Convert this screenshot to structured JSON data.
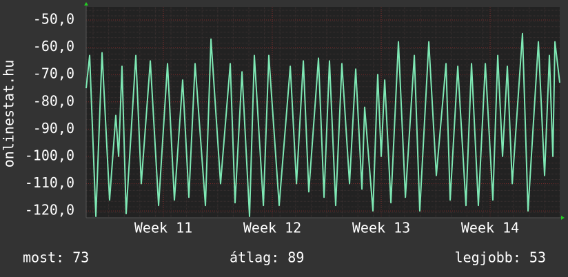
{
  "chart_data": {
    "type": "line",
    "y_label": "onlinestat.hu",
    "x": [
      10.291,
      10.323,
      10.38,
      10.437,
      10.506,
      10.563,
      10.589,
      10.62,
      10.658,
      10.747,
      10.797,
      10.88,
      10.956,
      11.038,
      11.101,
      11.177,
      11.234,
      11.291,
      11.386,
      11.437,
      11.525,
      11.614,
      11.658,
      11.722,
      11.791,
      11.835,
      11.918,
      11.968,
      12.063,
      12.165,
      12.222,
      12.285,
      12.335,
      12.424,
      12.475,
      12.525,
      12.582,
      12.639,
      12.709,
      12.766,
      12.823,
      12.848,
      12.924,
      12.968,
      13.0,
      13.032,
      13.089,
      13.158,
      13.222,
      13.304,
      13.354,
      13.437,
      13.506,
      13.595,
      13.633,
      13.703,
      13.778,
      13.829,
      13.892,
      13.956,
      14.025,
      14.07,
      14.114,
      14.158,
      14.203,
      14.297,
      14.348,
      14.443,
      14.5,
      14.544,
      14.576,
      14.595,
      14.639
    ],
    "series": [
      {
        "color": "#7ee8b4",
        "values": [
          -75,
          -63,
          -122,
          -62,
          -116,
          -85,
          -100,
          -67,
          -121,
          -63,
          -110,
          -65,
          -118,
          -66,
          -116,
          -72,
          -115,
          -66,
          -118,
          -57,
          -110,
          -66,
          -117,
          -69,
          -122,
          -63,
          -118,
          -63,
          -118,
          -67,
          -110,
          -65,
          -113,
          -64,
          -115,
          -65,
          -118,
          -66,
          -110,
          -68,
          -112,
          -82,
          -120,
          -70,
          -100,
          -72,
          -117,
          -58,
          -115,
          -63,
          -120,
          -58,
          -107,
          -66,
          -116,
          -67,
          -118,
          -66,
          -118,
          -66,
          -116,
          -63,
          -100,
          -67,
          -110,
          -55,
          -120,
          -58,
          -107,
          -63,
          -100,
          -58,
          -73
        ]
      }
    ],
    "xlim": [
      10.291,
      14.639
    ],
    "xticks": [
      {
        "value": 11,
        "label": "Week 11"
      },
      {
        "value": 12,
        "label": "Week 12"
      },
      {
        "value": 13,
        "label": "Week 13"
      },
      {
        "value": 14,
        "label": "Week 14"
      }
    ],
    "ylim": [
      -122.5,
      -45.2
    ],
    "yticks": [
      {
        "value": -120,
        "label": "-120,0"
      },
      {
        "value": -110,
        "label": "-110,0"
      },
      {
        "value": -100,
        "label": "-100,0"
      },
      {
        "value": -90,
        "label": "-90,0"
      },
      {
        "value": -80,
        "label": "-80,0"
      },
      {
        "value": -70,
        "label": "-70,0"
      },
      {
        "value": -60,
        "label": "-60,0"
      },
      {
        "value": -50,
        "label": "-50,0"
      }
    ],
    "grid": true,
    "footer": [
      "most: 73",
      "átlag: 89",
      "legjobb: 53"
    ]
  }
}
